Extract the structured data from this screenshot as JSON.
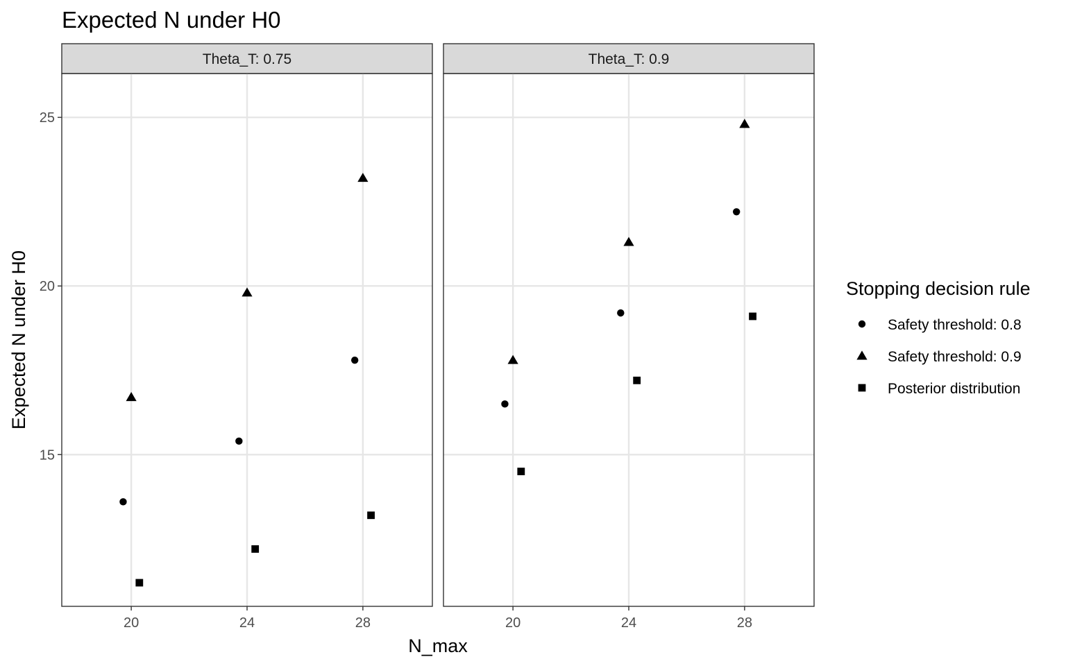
{
  "chart_data": {
    "type": "scatter",
    "title": "Expected N under H0",
    "xlabel": "N_max",
    "ylabel": "Expected N under H0",
    "xlim": [
      17.6,
      30.4
    ],
    "ylim": [
      10.5,
      26.3
    ],
    "x_ticks": [
      20,
      24,
      28
    ],
    "y_ticks": [
      15,
      20,
      25
    ],
    "grid": true,
    "legend": {
      "title": "Stopping decision rule",
      "placement": "right",
      "entries": [
        {
          "label": "Safety threshold: 0.8",
          "shape": "circle"
        },
        {
          "label": "Safety threshold: 0.9",
          "shape": "triangle"
        },
        {
          "label": "Posterior distribution",
          "shape": "square"
        }
      ]
    },
    "facets": [
      {
        "strip": "Theta_T: 0.75",
        "series": [
          {
            "name": "Safety threshold: 0.8",
            "shape": "circle",
            "points": [
              {
                "x": 20,
                "y": 13.6
              },
              {
                "x": 24,
                "y": 15.4
              },
              {
                "x": 28,
                "y": 17.8
              }
            ]
          },
          {
            "name": "Safety threshold: 0.9",
            "shape": "triangle",
            "points": [
              {
                "x": 20,
                "y": 16.7
              },
              {
                "x": 24,
                "y": 19.8
              },
              {
                "x": 28,
                "y": 23.2
              }
            ]
          },
          {
            "name": "Posterior distribution",
            "shape": "square",
            "points": [
              {
                "x": 20,
                "y": 11.2
              },
              {
                "x": 24,
                "y": 12.2
              },
              {
                "x": 28,
                "y": 13.2
              }
            ]
          }
        ]
      },
      {
        "strip": "Theta_T: 0.9",
        "series": [
          {
            "name": "Safety threshold: 0.8",
            "shape": "circle",
            "points": [
              {
                "x": 20,
                "y": 16.5
              },
              {
                "x": 24,
                "y": 19.2
              },
              {
                "x": 28,
                "y": 22.2
              }
            ]
          },
          {
            "name": "Safety threshold: 0.9",
            "shape": "triangle",
            "points": [
              {
                "x": 20,
                "y": 17.8
              },
              {
                "x": 24,
                "y": 21.3
              },
              {
                "x": 28,
                "y": 24.8
              }
            ]
          },
          {
            "name": "Posterior distribution",
            "shape": "square",
            "points": [
              {
                "x": 20,
                "y": 14.5
              },
              {
                "x": 24,
                "y": 17.2
              },
              {
                "x": 28,
                "y": 19.1
              }
            ]
          }
        ]
      }
    ]
  }
}
